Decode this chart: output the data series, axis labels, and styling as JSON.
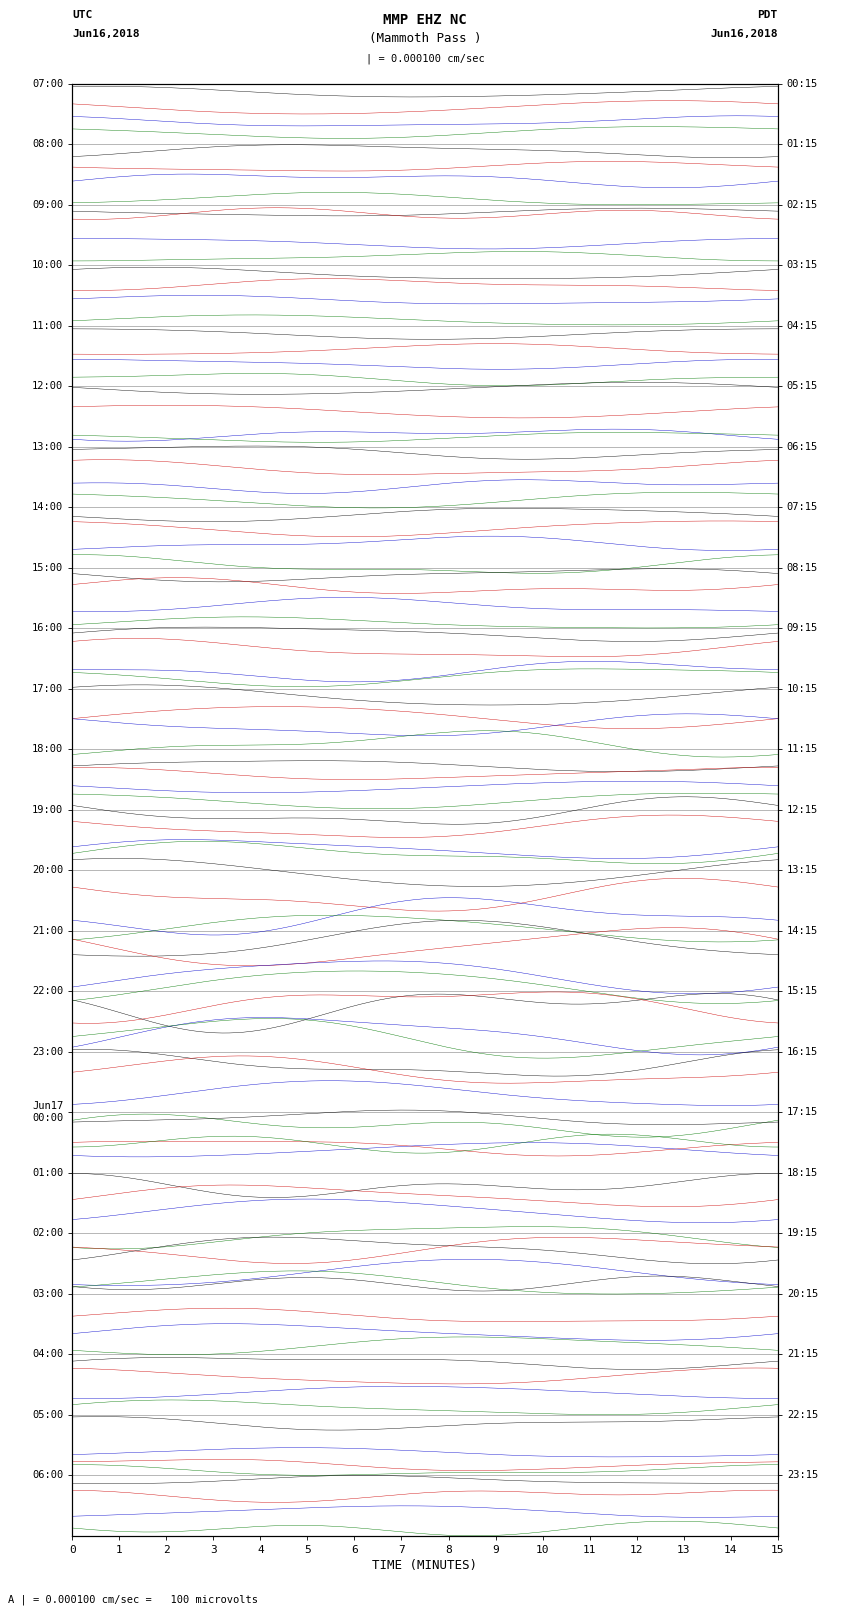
{
  "title_line1": "MMP EHZ NC",
  "title_line2": "(Mammoth Pass )",
  "scale_label": "| = 0.000100 cm/sec",
  "bottom_label": "A | = 0.000100 cm/sec =   100 microvolts",
  "xlabel": "TIME (MINUTES)",
  "left_header": "UTC",
  "left_date": "Jun16,2018",
  "right_header": "PDT",
  "right_date": "Jun16,2018",
  "utc_times": [
    "07:00",
    "08:00",
    "09:00",
    "10:00",
    "11:00",
    "12:00",
    "13:00",
    "14:00",
    "15:00",
    "16:00",
    "17:00",
    "18:00",
    "19:00",
    "20:00",
    "21:00",
    "22:00",
    "23:00",
    "Jun17\n00:00",
    "01:00",
    "02:00",
    "03:00",
    "04:00",
    "05:00",
    "06:00"
  ],
  "pdt_times": [
    "00:15",
    "01:15",
    "02:15",
    "03:15",
    "04:15",
    "05:15",
    "06:15",
    "07:15",
    "08:15",
    "09:15",
    "10:15",
    "11:15",
    "12:15",
    "13:15",
    "14:15",
    "15:15",
    "16:15",
    "17:15",
    "18:15",
    "19:15",
    "20:15",
    "21:15",
    "22:15",
    "23:15"
  ],
  "n_rows": 24,
  "traces_per_row": 4,
  "trace_colors": [
    "#000000",
    "#cc0000",
    "#0000cc",
    "#007700"
  ],
  "fig_width": 8.5,
  "fig_height": 16.13,
  "bg_color": "#ffffff",
  "xmin": 0,
  "xmax": 15,
  "xticks": [
    0,
    1,
    2,
    3,
    4,
    5,
    6,
    7,
    8,
    9,
    10,
    11,
    12,
    13,
    14,
    15
  ],
  "seed": 42
}
